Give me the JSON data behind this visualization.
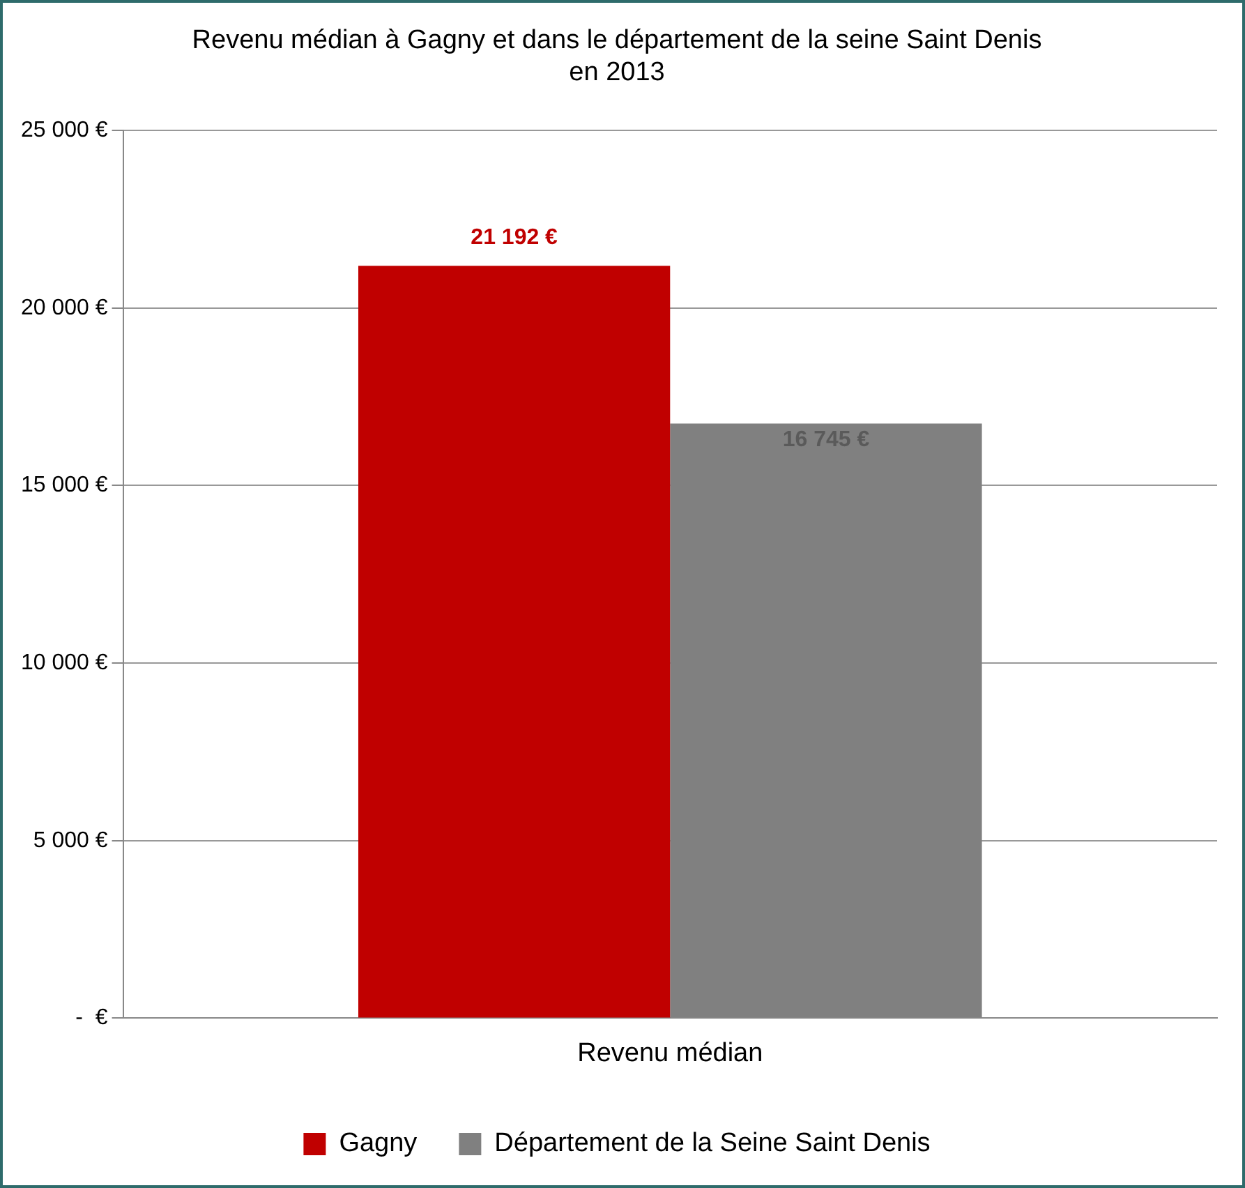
{
  "chart_data": {
    "type": "bar",
    "title": "Revenu médian à Gagny et dans le département de la seine Saint Denis\nen 2013",
    "categories": [
      "Revenu médian"
    ],
    "series": [
      {
        "name": "Gagny",
        "color": "#c00000",
        "values": [
          21192
        ],
        "value_labels": [
          "21 192 €"
        ]
      },
      {
        "name": "Département de la Seine Saint Denis",
        "color": "#808080",
        "values": [
          16745
        ],
        "value_labels": [
          "16 745 €"
        ]
      }
    ],
    "ylim": [
      0,
      25000
    ],
    "yticks": [
      {
        "value": 0,
        "label": "-  €"
      },
      {
        "value": 5000,
        "label": "5 000 €"
      },
      {
        "value": 10000,
        "label": "10 000 €"
      },
      {
        "value": 15000,
        "label": "15 000 €"
      },
      {
        "value": 20000,
        "label": "20 000 €"
      },
      {
        "value": 25000,
        "label": "25 000 €"
      }
    ],
    "grid": "y",
    "legend": "bottom"
  }
}
